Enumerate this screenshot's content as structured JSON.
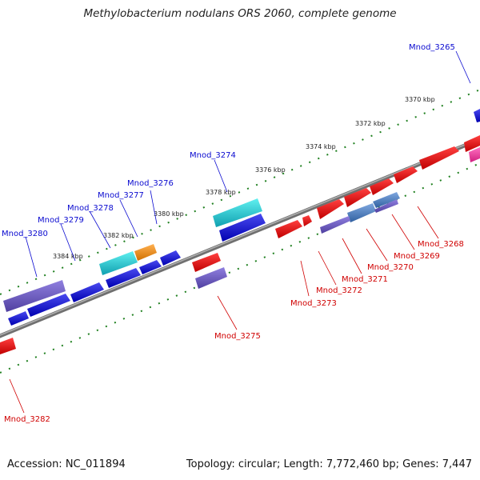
{
  "title": "Methylobacterium nodulans ORS 2060, complete genome",
  "footer": {
    "accession": "Accession: NC_011894",
    "summary": "Topology: circular; Length: 7,772,460 bp; Genes: 7,447"
  },
  "colors": {
    "forward_cds": "#1010d8",
    "reverse_cds": "#e01010",
    "rna": "#7060c0",
    "highlight_cyan": "#30d0d0",
    "highlight_orange": "#f09020",
    "highlight_pink": "#f040a0",
    "steel_blue": "#4878b8",
    "backbone": "#808080",
    "tick": "#20a020"
  },
  "scale_labels": [
    "3370 kbp",
    "3372 kbp",
    "3374 kbp",
    "3376 kbp",
    "3378 kbp",
    "3380 kbp",
    "3382 kbp",
    "3384 kbp"
  ],
  "gene_labels_forward": [
    "Mnod_3265",
    "Mnod_3274",
    "Mnod_3276",
    "Mnod_3277",
    "Mnod_3278",
    "Mnod_3279",
    "Mnod_3280"
  ],
  "gene_labels_reverse": [
    "Mnod_3268",
    "Mnod_3269",
    "Mnod_3270",
    "Mnod_3271",
    "Mnod_3272",
    "Mnod_3273",
    "Mnod_3275",
    "Mnod_3282"
  ]
}
